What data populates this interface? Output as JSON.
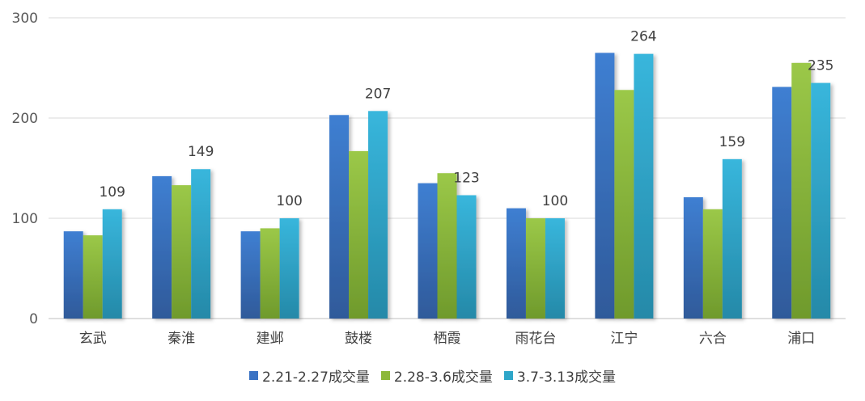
{
  "chart_data": {
    "type": "bar",
    "title": "",
    "xlabel": "",
    "ylabel": "",
    "ylim": [
      0,
      300
    ],
    "yticks": [
      "0",
      "100",
      "200",
      "300"
    ],
    "grid": true,
    "legend_position": "bottom",
    "categories": [
      "玄武",
      "秦淮",
      "建邺",
      "鼓楼",
      "栖霞",
      "雨花台",
      "江宁",
      "六合",
      "浦口"
    ],
    "series": [
      {
        "name": "2.21-2.27成交量",
        "color": "#3b73c4",
        "values": [
          87,
          142,
          87,
          203,
          135,
          110,
          265,
          121,
          231
        ]
      },
      {
        "name": "2.28-3.6成交量",
        "color": "#8db83a",
        "values": [
          83,
          133,
          90,
          167,
          145,
          100,
          228,
          109,
          255
        ]
      },
      {
        "name": "3.7-3.13成交量",
        "color": "#2ea6c9",
        "values": [
          109,
          149,
          100,
          207,
          123,
          100,
          264,
          159,
          235
        ],
        "data_labels": [
          "109",
          "149",
          "100",
          "207",
          "123",
          "100",
          "264",
          "159",
          "235"
        ]
      }
    ]
  }
}
